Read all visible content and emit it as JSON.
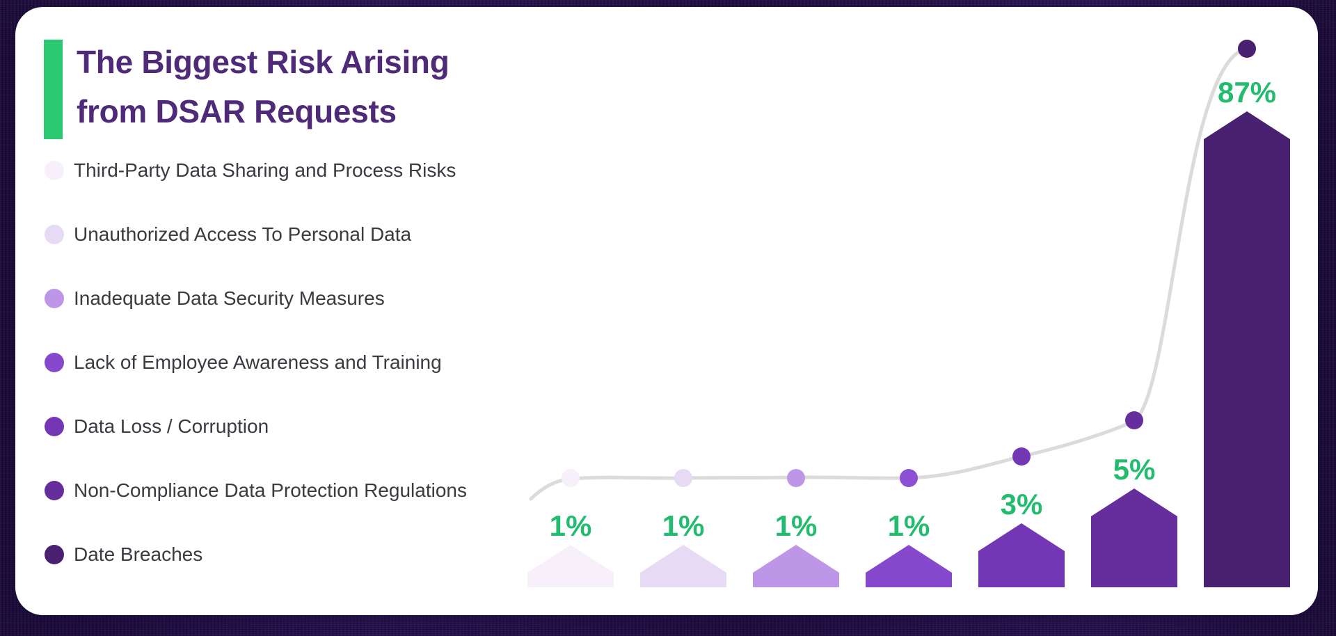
{
  "card": {
    "title_line1": "The Biggest Risk Arising",
    "title_line2": "from DSAR Requests"
  },
  "colors": {
    "accent_green": "#2CC973",
    "value_label_green": "#23BC6E",
    "title_purple": "#4E2A78",
    "legend_text": "#3A3A40",
    "trend_line": "#DBDBDB",
    "card_background": "#FFFFFF",
    "page_background": "#261347"
  },
  "legend": {
    "items": [
      {
        "label": "Third-Party Data Sharing and Process Risks",
        "color": "#F7F0FB"
      },
      {
        "label": "Unauthorized Access To Personal Data",
        "color": "#E6DAF5"
      },
      {
        "label": "Inadequate Data Security Measures",
        "color": "#BE96E8"
      },
      {
        "label": "Lack of Employee Awareness and Training",
        "color": "#8649CD"
      },
      {
        "label": "Data Loss / Corruption",
        "color": "#7337B5"
      },
      {
        "label": "Non-Compliance Data Protection Regulations",
        "color": "#662E9D"
      },
      {
        "label": "Date Breaches",
        "color": "#4A2170"
      }
    ]
  },
  "chart_data": {
    "type": "bar",
    "title": "The Biggest Risk Arising from DSAR Requests",
    "categories": [
      "Third-Party Data Sharing and Process Risks",
      "Unauthorized Access To Personal Data",
      "Inadequate Data Security Measures",
      "Lack of Employee Awareness and Training",
      "Data Loss / Corruption",
      "Non-Compliance Data Protection Regulations",
      "Date Breaches"
    ],
    "values": [
      1,
      1,
      1,
      1,
      3,
      5,
      87
    ],
    "labels": [
      "1%",
      "1%",
      "1%",
      "1%",
      "3%",
      "5%",
      "87%"
    ],
    "unit": "%",
    "ylim": [
      0,
      100
    ],
    "grid": false,
    "legend_position": "left",
    "bar_colors": [
      "#F7F0FB",
      "#E6DAF5",
      "#BE96E8",
      "#8649CD",
      "#7337B5",
      "#662E9D",
      "#4A2170"
    ],
    "dot_colors": [
      "#F7F0FB",
      "#E6DAF5",
      "#BE96E8",
      "#8B50D4",
      "#7337B5",
      "#662E9D",
      "#4A2170"
    ],
    "line_color": "#DBDBDB",
    "value_label_color": "#23BC6E"
  }
}
